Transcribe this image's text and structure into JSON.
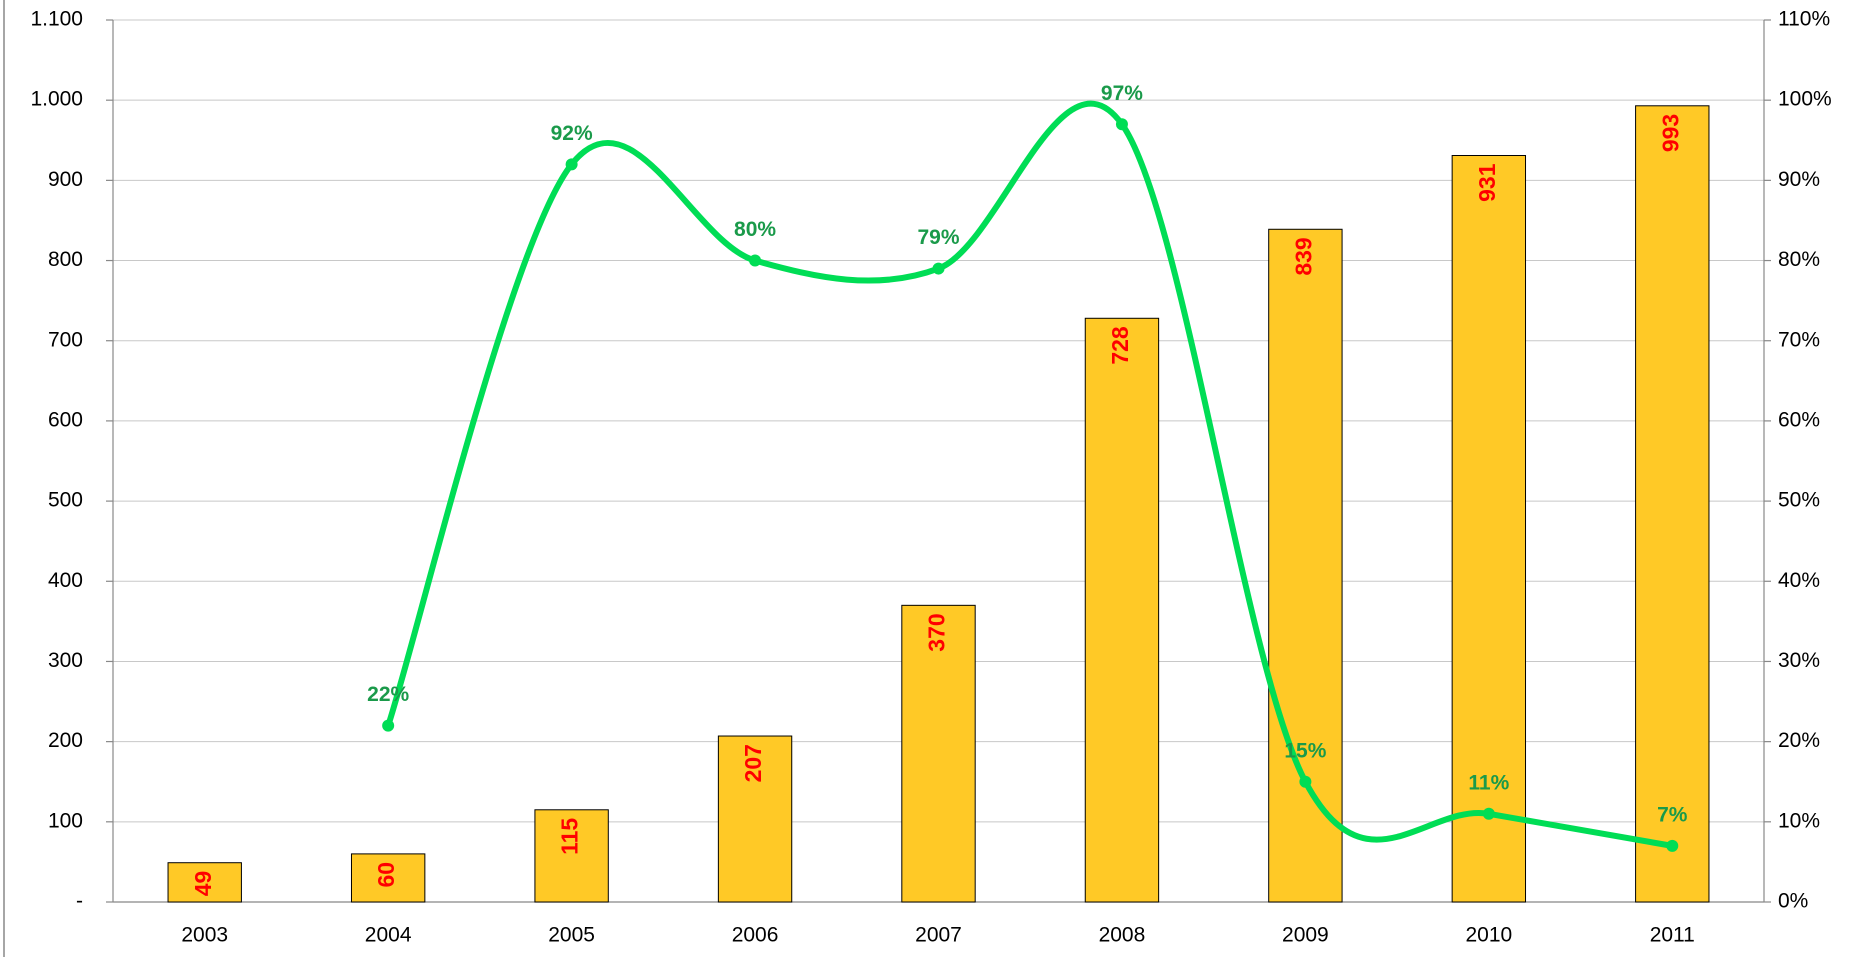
{
  "chart_data": {
    "type": "bar",
    "categories": [
      "2003",
      "2004",
      "2005",
      "2006",
      "2007",
      "2008",
      "2009",
      "2010",
      "2011"
    ],
    "series": [
      {
        "type": "bar",
        "color": "#ffc926",
        "values": [
          49,
          60,
          115,
          207,
          370,
          728,
          839,
          931,
          993
        ]
      },
      {
        "type": "line",
        "axis": "y2",
        "color": "#00dd55",
        "values": [
          null,
          22,
          92,
          80,
          79,
          97,
          15,
          11,
          7
        ],
        "value_labels": [
          null,
          "22%",
          "92%",
          "80%",
          "79%",
          "97%",
          "15%",
          "11%",
          "7%"
        ]
      }
    ],
    "ylim": [
      0,
      1100
    ],
    "yticks": [
      {
        "value": 0,
        "label": "-"
      },
      100,
      200,
      300,
      400,
      500,
      600,
      700,
      800,
      900,
      {
        "value": 1000,
        "label": "1.000"
      },
      {
        "value": 1100,
        "label": "1.100"
      }
    ],
    "y2lim": [
      0,
      110
    ],
    "y2ticks": [
      {
        "value": 0,
        "label": "0%"
      },
      {
        "value": 10,
        "label": "10%"
      },
      {
        "value": 20,
        "label": "20%"
      },
      {
        "value": 30,
        "label": "30%"
      },
      {
        "value": 40,
        "label": "40%"
      },
      {
        "value": 50,
        "label": "50%"
      },
      {
        "value": 60,
        "label": "60%"
      },
      {
        "value": 70,
        "label": "70%"
      },
      {
        "value": 80,
        "label": "80%"
      },
      {
        "value": 90,
        "label": "90%"
      },
      {
        "value": 100,
        "label": "100%"
      },
      {
        "value": 110,
        "label": "110%"
      }
    ],
    "grid": true
  }
}
